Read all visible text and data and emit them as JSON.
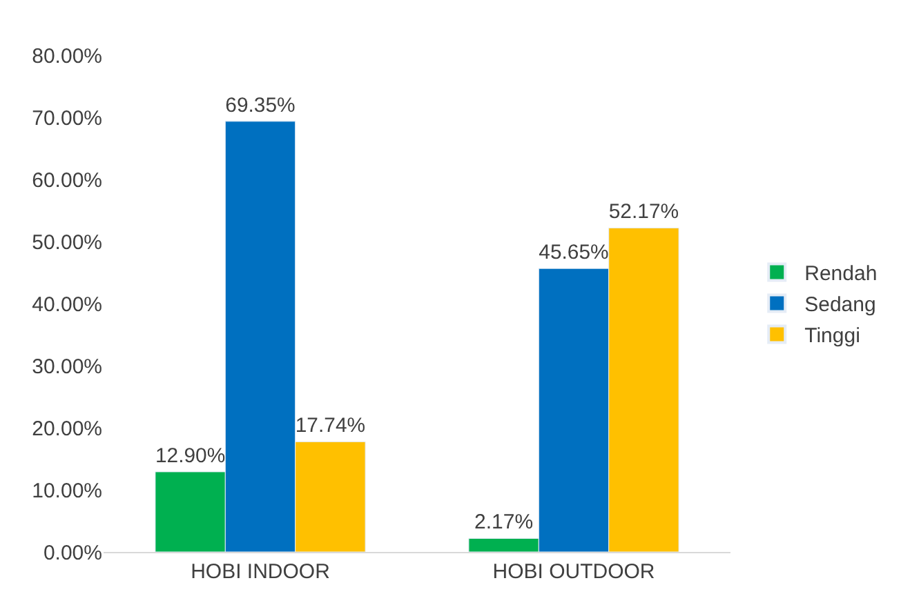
{
  "chart_data": {
    "type": "bar",
    "categories": [
      "HOBI INDOOR",
      "HOBI OUTDOOR"
    ],
    "series": [
      {
        "name": "Rendah",
        "color": "#00b050",
        "values": [
          12.9,
          2.17
        ],
        "value_labels": [
          "12.90%",
          "2.17%"
        ]
      },
      {
        "name": "Sedang",
        "color": "#0070c0",
        "values": [
          69.35,
          45.65
        ],
        "value_labels": [
          "69.35%",
          "45.65%"
        ]
      },
      {
        "name": "Tinggi",
        "color": "#ffc000",
        "values": [
          17.74,
          52.17
        ],
        "value_labels": [
          "17.74%",
          "52.17%"
        ]
      }
    ],
    "ylim": [
      0,
      80
    ],
    "yticks": [
      {
        "value": 0,
        "label": "0.00%"
      },
      {
        "value": 10,
        "label": "10.00%"
      },
      {
        "value": 20,
        "label": "20.00%"
      },
      {
        "value": 30,
        "label": "30.00%"
      },
      {
        "value": 40,
        "label": "40.00%"
      },
      {
        "value": 50,
        "label": "50.00%"
      },
      {
        "value": 60,
        "label": "60.00%"
      },
      {
        "value": 70,
        "label": "70.00%"
      },
      {
        "value": 80,
        "label": "80.00%"
      }
    ],
    "grid": false,
    "legend": "right"
  }
}
